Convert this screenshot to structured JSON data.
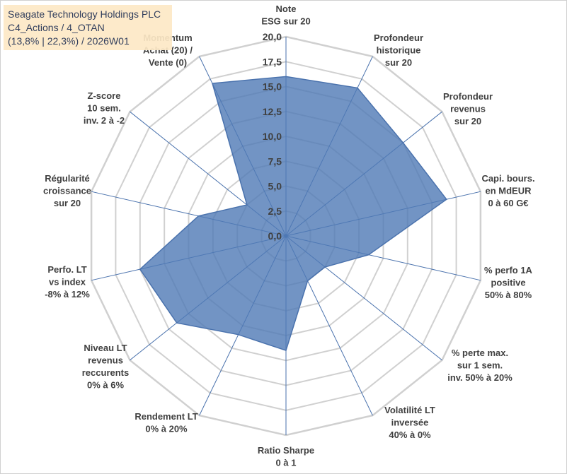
{
  "title_box": {
    "line1": "Seagate Technology Holdings PLC",
    "line2": "C4_Actions / 4_OTAN",
    "line3": "(13,8% | 22,3%) / 2026W01"
  },
  "chart_data": {
    "type": "radar",
    "r_min": 0,
    "r_max": 20,
    "r_step": 2.5,
    "tick_labels": [
      "0,0",
      "2,5",
      "5,0",
      "7,5",
      "10,0",
      "12,5",
      "15,0",
      "17,5",
      "20,0"
    ],
    "axes": [
      {
        "label": [
          "Note",
          "ESG sur 20"
        ],
        "value": 16.0
      },
      {
        "label": [
          "Profondeur",
          "historique",
          "sur 20"
        ],
        "value": 16.5
      },
      {
        "label": [
          "Profondeur",
          "revenus",
          "sur 20"
        ],
        "value": 15.0
      },
      {
        "label": [
          "Capi. bours.",
          "en MdEUR",
          "0 à 60 G€"
        ],
        "value": 16.5
      },
      {
        "label": [
          "% perfo 1A",
          "positive",
          "50% à 80%"
        ],
        "value": 8.5
      },
      {
        "label": [
          "% perte max.",
          "sur 1 sem.",
          "inv. 50% à 20%"
        ],
        "value": 5.0
      },
      {
        "label": [
          "Volatilité LT",
          "inversée",
          "40% à 0%"
        ],
        "value": 5.0
      },
      {
        "label": [
          "Ratio Sharpe",
          "0 à 1"
        ],
        "value": 11.5
      },
      {
        "label": [
          "Rendement LT",
          "0% à 20%"
        ],
        "value": 11.0
      },
      {
        "label": [
          "Niveau LT",
          "revenus",
          "reccurents",
          "0% à 6%"
        ],
        "value": 14.0
      },
      {
        "label": [
          "Perfo. LT",
          "vs index",
          "-8% à 12%"
        ],
        "value": 15.0
      },
      {
        "label": [
          "Régularité",
          "croissance",
          "sur 20"
        ],
        "value": 9.0
      },
      {
        "label": [
          "Z-score",
          "10 sem.",
          "inv. 2 à -2"
        ],
        "value": 5.0
      },
      {
        "label": [
          "Momentum",
          "Achat (20) /",
          "Vente (0)"
        ],
        "value": 17.0
      }
    ],
    "series": [
      {
        "name": "Seagate Technology Holdings PLC"
      }
    ],
    "colors": {
      "fill": "#4f79b5",
      "fill_opacity": "0.8",
      "outline": "#4a72ad",
      "spoke": "#4a72ad",
      "grid": "#d0d0d0",
      "tick_bg": "#ffffff"
    }
  }
}
